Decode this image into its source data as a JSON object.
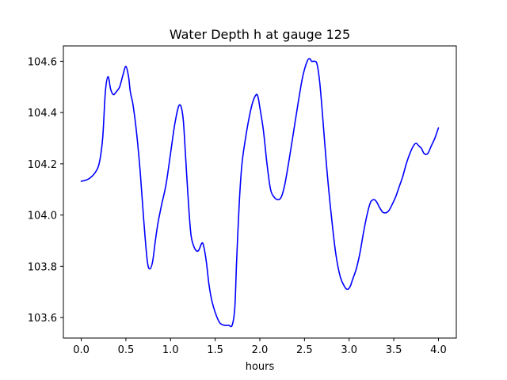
{
  "chart_data": {
    "type": "line",
    "title": "Water Depth h at gauge 125",
    "xlabel": "hours",
    "ylabel": "",
    "xlim": [
      -0.2,
      4.2
    ],
    "ylim": [
      103.52,
      104.66
    ],
    "xticks": [
      0.0,
      0.5,
      1.0,
      1.5,
      2.0,
      2.5,
      3.0,
      3.5,
      4.0
    ],
    "xtick_labels": [
      "0.0",
      "0.5",
      "1.0",
      "1.5",
      "2.0",
      "2.5",
      "3.0",
      "3.5",
      "4.0"
    ],
    "yticks": [
      103.6,
      103.8,
      104.0,
      104.2,
      104.4,
      104.6
    ],
    "ytick_labels": [
      "103.6",
      "103.8",
      "104.0",
      "104.2",
      "104.4",
      "104.6"
    ],
    "grid": false,
    "series": [
      {
        "color": "#0000ff",
        "x": [
          0.0,
          0.05,
          0.1,
          0.15,
          0.2,
          0.24,
          0.27,
          0.3,
          0.33,
          0.36,
          0.39,
          0.43,
          0.47,
          0.5,
          0.53,
          0.55,
          0.58,
          0.62,
          0.66,
          0.7,
          0.74,
          0.77,
          0.8,
          0.83,
          0.86,
          0.9,
          0.95,
          1.0,
          1.05,
          1.1,
          1.14,
          1.17,
          1.2,
          1.23,
          1.27,
          1.31,
          1.35,
          1.37,
          1.4,
          1.43,
          1.46,
          1.5,
          1.55,
          1.6,
          1.65,
          1.69,
          1.72,
          1.74,
          1.77,
          1.8,
          1.84,
          1.88,
          1.92,
          1.96,
          1.98,
          2.0,
          2.04,
          2.08,
          2.12,
          2.16,
          2.2,
          2.24,
          2.28,
          2.33,
          2.38,
          2.43,
          2.48,
          2.53,
          2.56,
          2.58,
          2.61,
          2.64,
          2.67,
          2.7,
          2.75,
          2.8,
          2.85,
          2.9,
          2.95,
          2.98,
          3.01,
          3.04,
          3.08,
          3.12,
          3.16,
          3.2,
          3.24,
          3.28,
          3.31,
          3.34,
          3.38,
          3.42,
          3.45,
          3.48,
          3.52,
          3.56,
          3.6,
          3.64,
          3.68,
          3.72,
          3.75,
          3.78,
          3.81,
          3.84,
          3.88,
          3.92,
          3.96,
          4.0
        ],
        "y": [
          104.132,
          104.136,
          104.145,
          104.163,
          104.2,
          104.3,
          104.48,
          104.54,
          104.49,
          104.47,
          104.48,
          104.5,
          104.55,
          104.58,
          104.54,
          104.48,
          104.43,
          104.32,
          104.17,
          103.98,
          103.82,
          103.79,
          103.82,
          103.9,
          103.97,
          104.04,
          104.12,
          104.24,
          104.36,
          104.43,
          104.38,
          104.22,
          104.05,
          103.92,
          103.87,
          103.86,
          103.89,
          103.88,
          103.82,
          103.73,
          103.67,
          103.62,
          103.58,
          103.57,
          103.57,
          103.57,
          103.64,
          103.82,
          104.05,
          104.2,
          104.3,
          104.38,
          104.44,
          104.47,
          104.46,
          104.42,
          104.33,
          104.2,
          104.1,
          104.07,
          104.06,
          104.07,
          104.12,
          104.22,
          104.33,
          104.44,
          104.54,
          104.6,
          104.61,
          104.6,
          104.6,
          104.59,
          104.52,
          104.4,
          104.18,
          104.0,
          103.85,
          103.76,
          103.72,
          103.71,
          103.72,
          103.75,
          103.79,
          103.85,
          103.93,
          104.0,
          104.05,
          104.06,
          104.05,
          104.03,
          104.01,
          104.01,
          104.02,
          104.04,
          104.07,
          104.11,
          104.15,
          104.2,
          104.24,
          104.27,
          104.28,
          104.27,
          104.26,
          104.24,
          104.24,
          104.27,
          104.3,
          104.34
        ]
      }
    ]
  }
}
